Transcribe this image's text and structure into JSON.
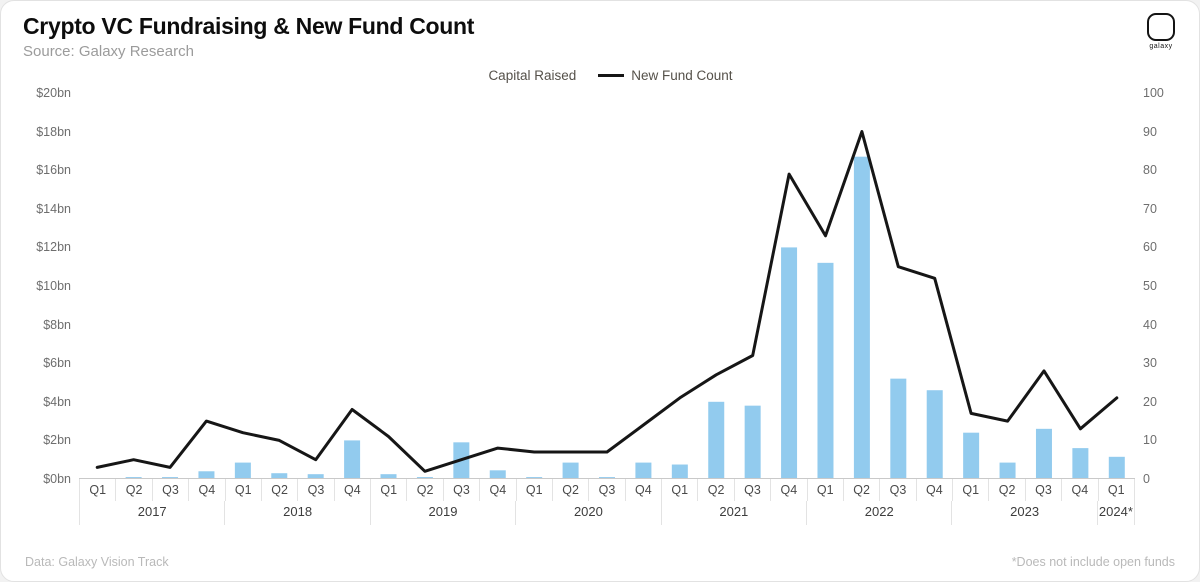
{
  "header": {
    "title": "Crypto VC Fundraising & New Fund Count",
    "source": "Source: Galaxy Research",
    "logo_text": "galaxy"
  },
  "legend": {
    "capital_raised_label": "Capital Raised",
    "new_fund_count_label": "New Fund Count"
  },
  "footer": {
    "left": "Data: Galaxy Vision Track",
    "right": "*Does not include open funds"
  },
  "colors": {
    "bar": "#92CBEE",
    "line": "#161616",
    "baseline": "#c9c9c9"
  },
  "chart_data": {
    "type": "bar",
    "title": "Crypto VC Fundraising & New Fund Count",
    "categories": [
      "Q1",
      "Q2",
      "Q3",
      "Q4",
      "Q1",
      "Q2",
      "Q3",
      "Q4",
      "Q1",
      "Q2",
      "Q3",
      "Q4",
      "Q1",
      "Q2",
      "Q3",
      "Q4",
      "Q1",
      "Q2",
      "Q3",
      "Q4",
      "Q1",
      "Q2",
      "Q3",
      "Q4",
      "Q1",
      "Q2",
      "Q3",
      "Q4",
      "Q1"
    ],
    "year_groups": [
      {
        "label": "2017",
        "count": 4
      },
      {
        "label": "2018",
        "count": 4
      },
      {
        "label": "2019",
        "count": 4
      },
      {
        "label": "2020",
        "count": 4
      },
      {
        "label": "2021",
        "count": 4
      },
      {
        "label": "2022",
        "count": 4
      },
      {
        "label": "2023",
        "count": 4
      },
      {
        "label": "2024*",
        "count": 1
      }
    ],
    "series": [
      {
        "name": "Capital Raised",
        "type": "bar",
        "axis": "left",
        "unit": "$bn",
        "values": [
          0.05,
          0.1,
          0.1,
          0.4,
          0.85,
          0.3,
          0.25,
          2.0,
          0.25,
          0.1,
          1.9,
          0.45,
          0.1,
          0.85,
          0.1,
          0.85,
          0.75,
          4.0,
          3.8,
          12.0,
          11.2,
          16.7,
          5.2,
          4.6,
          2.4,
          0.85,
          2.6,
          1.6,
          1.15
        ]
      },
      {
        "name": "New Fund Count",
        "type": "line",
        "axis": "right",
        "values": [
          3,
          5,
          3,
          15,
          12,
          10,
          5,
          18,
          11,
          2,
          5,
          8,
          7,
          7,
          7,
          14,
          21,
          27,
          32,
          79,
          63,
          90,
          55,
          52,
          17,
          15,
          28,
          13,
          21
        ]
      }
    ],
    "left_axis": {
      "label": "Capital Raised ($bn)",
      "min": 0,
      "max": 20,
      "step": 2,
      "tick_labels_top_to_bottom": [
        "$20bn",
        "$18bn",
        "$16bn",
        "$14bn",
        "$12bn",
        "$10bn",
        "$8bn",
        "$6bn",
        "$4bn",
        "$2bn",
        "$0bn"
      ]
    },
    "right_axis": {
      "label": "New Fund Count",
      "min": 0,
      "max": 100,
      "step": 10,
      "tick_labels_top_to_bottom": [
        "100",
        "90",
        "80",
        "70",
        "60",
        "50",
        "40",
        "30",
        "20",
        "10",
        "0"
      ]
    },
    "grid": false,
    "legend_position": "top-center"
  }
}
